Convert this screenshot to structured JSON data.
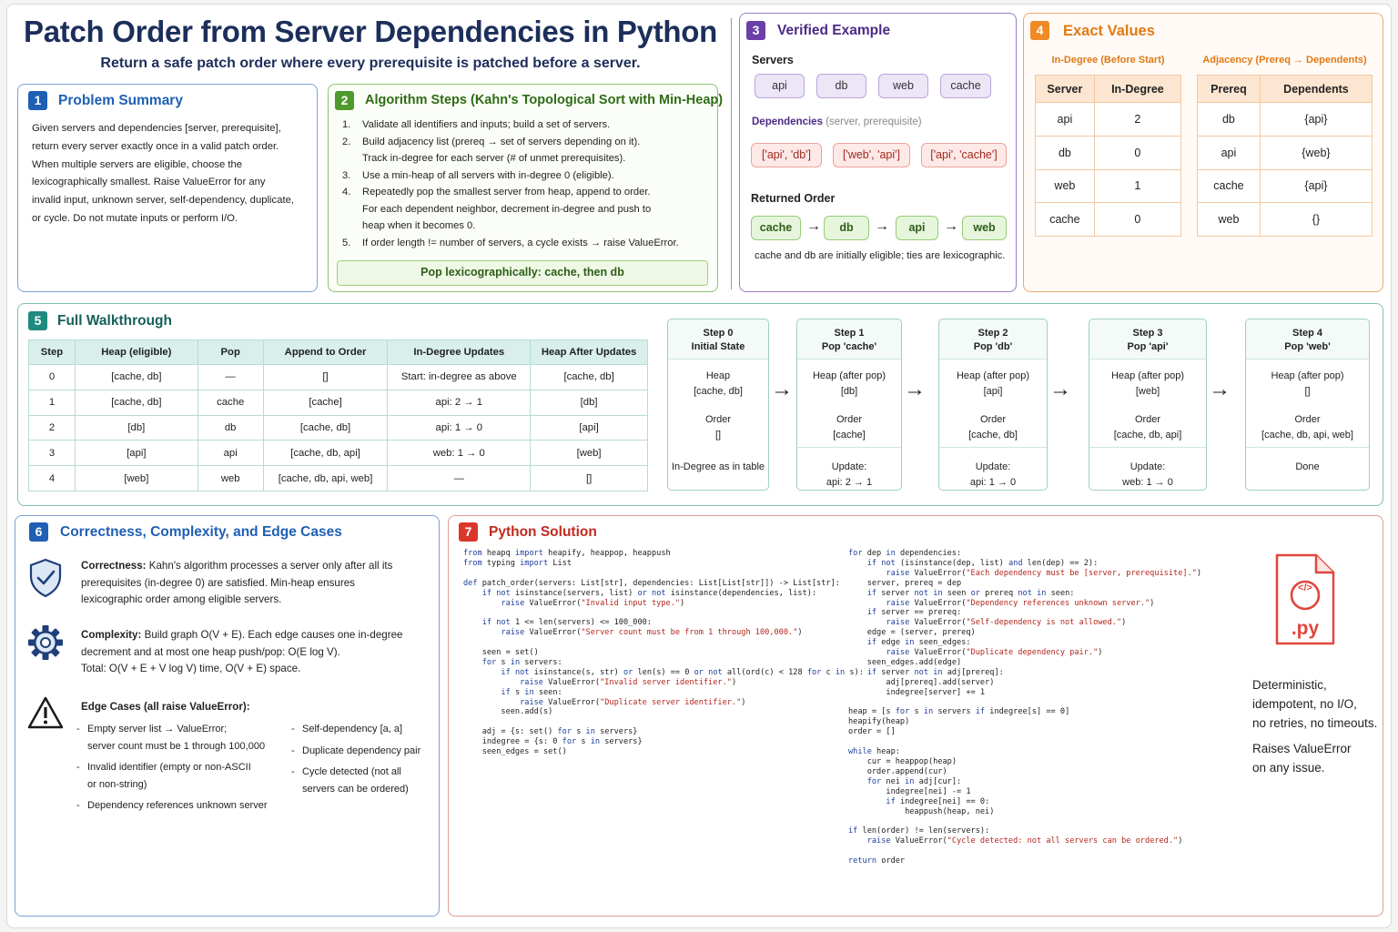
{
  "header": {
    "title": "Patch Order from Server Dependencies in Python",
    "subtitle": "Return a safe patch order where every prerequisite is patched before a server."
  },
  "colors": {
    "blue": "#1f5fb4",
    "green": "#4e9a2c",
    "purple": "#6b3fa8",
    "orange": "#f08a24",
    "teal": "#1f8a7e",
    "red": "#d9362c"
  },
  "p1": {
    "num": "1",
    "title": "Problem Summary",
    "lines": [
      "Given servers and dependencies [server, prerequisite],",
      "return every server exactly once in a valid patch order.",
      "When multiple servers are eligible, choose the",
      "lexicographically smallest. Raise ValueError for any",
      "invalid input, unknown server, self-dependency, duplicate,",
      "or cycle. Do not mutate inputs or perform I/O."
    ]
  },
  "p2": {
    "num": "2",
    "title": "Algorithm Steps (Kahn's Topological Sort with Min-Heap)",
    "steps": [
      {
        "n": "1.",
        "lines": [
          "Validate all identifiers and inputs; build a set of servers."
        ]
      },
      {
        "n": "2.",
        "lines": [
          "Build adjacency list (prereq → set of servers depending on it).",
          "Track in-degree for each server (# of unmet prerequisites)."
        ]
      },
      {
        "n": "3.",
        "lines": [
          "Use a min-heap of all servers with in-degree 0 (eligible)."
        ]
      },
      {
        "n": "4.",
        "lines": [
          "Repeatedly pop the smallest server from heap, append to order.",
          "For each dependent neighbor, decrement in-degree and push to",
          "heap when it becomes 0."
        ]
      },
      {
        "n": "5.",
        "lines": [
          "If order length != number of servers, a cycle exists → raise ValueError."
        ]
      }
    ],
    "note": "Pop lexicographically: cache, then db"
  },
  "p3": {
    "num": "3",
    "title": "Verified Example",
    "servers_label": "Servers",
    "servers": [
      "api",
      "db",
      "web",
      "cache"
    ],
    "deps_label": "Dependencies",
    "deps_hint": "(server, prerequisite)",
    "deps": [
      "['api', 'db']",
      "['web', 'api']",
      "['api', 'cache']"
    ],
    "order_label": "Returned Order",
    "order": [
      "cache",
      "db",
      "api",
      "web"
    ],
    "arrow": "→",
    "order_note": "cache and db are initially eligible; ties are lexicographic."
  },
  "p4": {
    "num": "4",
    "title": "Exact Values",
    "indeg_label": "In-Degree (Before Start)",
    "indeg_headers": [
      "Server",
      "In-Degree"
    ],
    "indeg_rows": [
      [
        "api",
        "2"
      ],
      [
        "db",
        "0"
      ],
      [
        "web",
        "1"
      ],
      [
        "cache",
        "0"
      ]
    ],
    "adj_label": "Adjacency (Prereq → Dependents)",
    "adj_headers": [
      "Prereq",
      "Dependents"
    ],
    "adj_rows": [
      [
        "db",
        "{api}"
      ],
      [
        "api",
        "{web}"
      ],
      [
        "cache",
        "{api}"
      ],
      [
        "web",
        "{}"
      ]
    ]
  },
  "p5": {
    "num": "5",
    "title": "Full Walkthrough",
    "headers": [
      "Step",
      "Heap (eligible)",
      "Pop",
      "Append to Order",
      "In-Degree Updates",
      "Heap After Updates"
    ],
    "rows": [
      [
        "0",
        "[cache, db]",
        "—",
        "[]",
        "Start: in-degree as above",
        "[cache, db]"
      ],
      [
        "1",
        "[cache, db]",
        "cache",
        "[cache]",
        "api: 2 → 1",
        "[db]"
      ],
      [
        "2",
        "[db]",
        "db",
        "[cache, db]",
        "api: 1 → 0",
        "[api]"
      ],
      [
        "3",
        "[api]",
        "api",
        "[cache, db, api]",
        "web: 1 → 0",
        "[web]"
      ],
      [
        "4",
        "[web]",
        "web",
        "[cache, db, api, web]",
        "—",
        "[]"
      ]
    ],
    "cards": [
      {
        "h1": "Step 0",
        "h2": "Initial State",
        "heap_label": "Heap",
        "heap": "[cache, db]",
        "order_label": "Order",
        "order": "[]",
        "upd1": "In-Degree as in table",
        "upd2": ""
      },
      {
        "h1": "Step 1",
        "h2": "Pop 'cache'",
        "heap_label": "Heap (after pop)",
        "heap": "[db]",
        "order_label": "Order",
        "order": "[cache]",
        "upd1": "Update:",
        "upd2": "api: 2 → 1"
      },
      {
        "h1": "Step 2",
        "h2": "Pop 'db'",
        "heap_label": "Heap (after pop)",
        "heap": "[api]",
        "order_label": "Order",
        "order": "[cache, db]",
        "upd1": "Update:",
        "upd2": "api: 1 → 0"
      },
      {
        "h1": "Step 3",
        "h2": "Pop 'api'",
        "heap_label": "Heap (after pop)",
        "heap": "[web]",
        "order_label": "Order",
        "order": "[cache, db, api]",
        "upd1": "Update:",
        "upd2": "web: 1 → 0"
      },
      {
        "h1": "Step 4",
        "h2": "Pop 'web'",
        "heap_label": "Heap (after pop)",
        "heap": "[]",
        "order_label": "Order",
        "order": "[cache, db, api, web]",
        "upd1": "Done",
        "upd2": ""
      }
    ],
    "arrow": "→"
  },
  "p6": {
    "num": "6",
    "title": "Correctness, Complexity, and Edge Cases",
    "correct_label": "Correctness:",
    "correct_lines": [
      " Kahn's algorithm processes a server only after all its",
      "prerequisites (in-degree 0) are satisfied. Min-heap ensures",
      "lexicographic order among eligible servers."
    ],
    "complex_label": "Complexity:",
    "complex_lines": [
      " Build graph O(V + E). Each edge causes one in-degree",
      "decrement and at most one heap push/pop: O(E log V).",
      "Total: O(V + E + V log V) time, O(V + E) space."
    ],
    "edge_label": "Edge Cases (all raise ValueError):",
    "edges_left": [
      {
        "a": "Empty server list → ValueError;",
        "b": "server count must be 1 through 100,000"
      },
      {
        "a": "Invalid identifier (empty or non-ASCII",
        "b": "or non-string)"
      },
      {
        "a": "Dependency references unknown server",
        "b": ""
      }
    ],
    "edges_right": [
      {
        "a": "Self-dependency [a, a]",
        "b": ""
      },
      {
        "a": "Duplicate dependency pair",
        "b": ""
      },
      {
        "a": "Cycle detected (not all",
        "b": "servers can be ordered)"
      }
    ],
    "bullet": "-"
  },
  "p7": {
    "num": "7",
    "title": "Python Solution",
    "file_ext": ".py",
    "file_icon": "</>",
    "side1": [
      "Deterministic,",
      "idempotent, no I/O,",
      "no retries, no timeouts."
    ],
    "side2": [
      "Raises ValueError",
      "on any issue."
    ],
    "code_left": [
      "from heapq import heapify, heappop, heappush",
      "from typing import List",
      "",
      "def patch_order(servers: List[str], dependencies: List[List[str]]) -> List[str]:",
      "    if not isinstance(servers, list) or not isinstance(dependencies, list):",
      "        raise ValueError(\"Invalid input type.\")",
      "",
      "    if not 1 <= len(servers) <= 100_000:",
      "        raise ValueError(\"Server count must be from 1 through 100,000.\")",
      "",
      "    seen = set()",
      "    for s in servers:",
      "        if not isinstance(s, str) or len(s) == 0 or not all(ord(c) < 128 for c in s):",
      "            raise ValueError(\"Invalid server identifier.\")",
      "        if s in seen:",
      "            raise ValueError(\"Duplicate server identifier.\")",
      "        seen.add(s)",
      "",
      "    adj = {s: set() for s in servers}",
      "    indegree = {s: 0 for s in servers}",
      "    seen_edges = set()"
    ],
    "code_right": [
      "for dep in dependencies:",
      "    if not (isinstance(dep, list) and len(dep) == 2):",
      "        raise ValueError(\"Each dependency must be [server, prerequisite].\")",
      "    server, prereq = dep",
      "    if server not in seen or prereq not in seen:",
      "        raise ValueError(\"Dependency references unknown server.\")",
      "    if server == prereq:",
      "        raise ValueError(\"Self-dependency is not allowed.\")",
      "    edge = (server, prereq)",
      "    if edge in seen_edges:",
      "        raise ValueError(\"Duplicate dependency pair.\")",
      "    seen_edges.add(edge)",
      "    if server not in adj[prereq]:",
      "        adj[prereq].add(server)",
      "        indegree[server] += 1",
      "",
      "heap = [s for s in servers if indegree[s] == 0]",
      "heapify(heap)",
      "order = []",
      "",
      "while heap:",
      "    cur = heappop(heap)",
      "    order.append(cur)",
      "    for nei in adj[cur]:",
      "        indegree[nei] -= 1",
      "        if indegree[nei] == 0:",
      "            heappush(heap, nei)",
      "",
      "if len(order) != len(servers):",
      "    raise ValueError(\"Cycle detected: not all servers can be ordered.\")",
      "",
      "return order"
    ]
  }
}
